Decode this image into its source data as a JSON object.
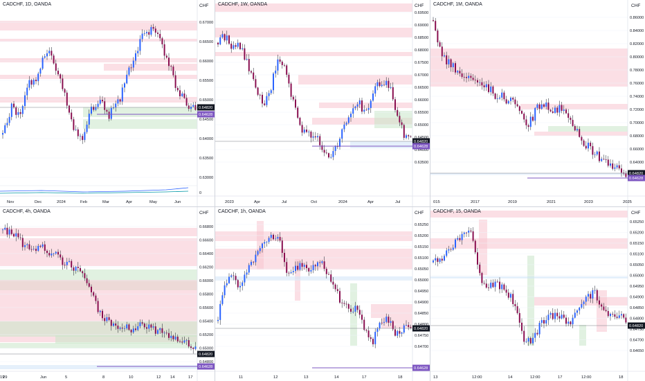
{
  "colors": {
    "bull": "#2962ff",
    "bear": "#880e4f",
    "wick": "#131722",
    "zone_red": "#f7c5d0",
    "zone_green": "#c8e6c9",
    "zone_blue": "#cfe3f7",
    "price_tag": "#131722",
    "alt_tag": "#7e57c2",
    "axis_text": "#131722",
    "divider": "#d1d4dc"
  },
  "panels": [
    {
      "id": "p1",
      "title": "CADCHF, 1D, OANDA",
      "currency": "CHF",
      "yticks": [
        "0.67000",
        "0.66500",
        "0.66000",
        "0.65500",
        "0.65000",
        "0.64500",
        "0.64000",
        "0.63500",
        "0.63000"
      ],
      "price_label": "0.64820",
      "alt_label": "0.64628",
      "xticks": [
        "Nov",
        "Dec",
        "2024",
        "Feb",
        "Mar",
        "Apr",
        "May",
        "Jun"
      ],
      "indicator_tick": "0"
    },
    {
      "id": "p2",
      "title": "CADCHF, 1W, OANDA",
      "currency": "CHF",
      "yticks": [
        "0.69500",
        "0.69000",
        "0.68500",
        "0.68000",
        "0.67500",
        "0.67000",
        "0.66500",
        "0.66000",
        "0.65500",
        "0.65000",
        "0.64500",
        "0.64000",
        "0.63500"
      ],
      "price_label": "0.64820",
      "alt_label": "0.64628",
      "xticks": [
        "2023",
        "Apr",
        "Jul",
        "Oct",
        "2024",
        "Apr",
        "Jul"
      ]
    },
    {
      "id": "p3",
      "title": "CADCHF, 1M, OANDA",
      "currency": "CHF",
      "yticks": [
        "0.86000",
        "0.84000",
        "0.82000",
        "0.80000",
        "0.78000",
        "0.76000",
        "0.74000",
        "0.72000",
        "0.70000",
        "0.68000",
        "0.66000",
        "0.64000",
        "0.62000"
      ],
      "price_label": "0.64820",
      "alt_label": "0.64628",
      "xticks": [
        "015",
        "2017",
        "2019",
        "2021",
        "2023",
        "2025"
      ]
    },
    {
      "id": "p4",
      "title": "CADCHF, 4h, OANDA",
      "currency": "CHF",
      "yticks": [
        "0.66800",
        "0.66600",
        "0.66400",
        "0.66200",
        "0.66000",
        "0.65800",
        "0.65600",
        "0.65400",
        "0.65200",
        "0.65000",
        "0.64800"
      ],
      "price_label": "0.64820",
      "alt_label": "0.64628",
      "xticks": [
        "29",
        "Jun",
        "5",
        "8",
        "10",
        "12",
        "14",
        "17",
        "19"
      ]
    },
    {
      "id": "p5",
      "title": "CADCHF, 1h, OANDA",
      "currency": "CHF",
      "yticks": [
        "0.65250",
        "0.65200",
        "0.65150",
        "0.65100",
        "0.65050",
        "0.65000",
        "0.64950",
        "0.64900",
        "0.64850",
        "0.64800",
        "0.64750",
        "0.64700"
      ],
      "price_label": "0.64820",
      "alt_label": "0.64628",
      "xticks": [
        "11",
        "12",
        "13",
        "14",
        "17",
        "18"
      ]
    },
    {
      "id": "p6",
      "title": "CADCHF, 15, OANDA",
      "currency": "CHF",
      "yticks": [
        "0.65250",
        "0.65200",
        "0.65150",
        "0.65100",
        "0.65050",
        "0.65000",
        "0.64950",
        "0.64900",
        "0.64850",
        "0.64800",
        "0.64750",
        "0.64700",
        "0.64650"
      ],
      "price_label": "0.64820",
      "alt_label": "",
      "xticks": [
        "13",
        "12:00",
        "14",
        "12:00",
        "17",
        "12:00",
        "18"
      ]
    }
  ]
}
